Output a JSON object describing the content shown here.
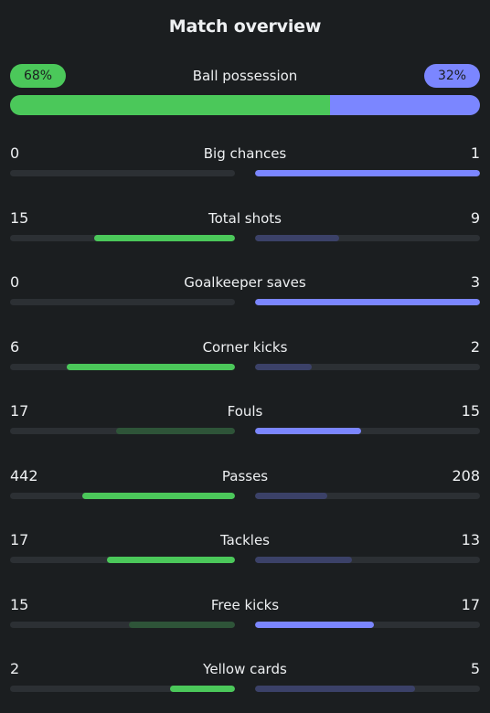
{
  "title": "Match overview",
  "possession": {
    "label": "Ball possession",
    "home_label": "68%",
    "away_label": "32%",
    "home_pct": 68,
    "away_pct": 32
  },
  "colors": {
    "home_strong": "#4bc85a",
    "home_weak": "#2e5438",
    "away_strong": "#7b86ff",
    "away_weak": "#3b4168",
    "track": "#2c3034"
  },
  "stats": [
    {
      "label": "Big chances",
      "home": "0",
      "away": "1",
      "home_fill": 0,
      "away_fill": 1.0,
      "home_strong": false,
      "away_strong": true
    },
    {
      "label": "Total shots",
      "home": "15",
      "away": "9",
      "home_fill": 0.625,
      "away_fill": 0.375,
      "home_strong": true,
      "away_strong": false
    },
    {
      "label": "Goalkeeper saves",
      "home": "0",
      "away": "3",
      "home_fill": 0,
      "away_fill": 1.0,
      "home_strong": false,
      "away_strong": true
    },
    {
      "label": "Corner kicks",
      "home": "6",
      "away": "2",
      "home_fill": 0.75,
      "away_fill": 0.25,
      "home_strong": true,
      "away_strong": false
    },
    {
      "label": "Fouls",
      "home": "17",
      "away": "15",
      "home_fill": 0.53,
      "away_fill": 0.47,
      "home_strong": false,
      "away_strong": true
    },
    {
      "label": "Passes",
      "home": "442",
      "away": "208",
      "home_fill": 0.68,
      "away_fill": 0.32,
      "home_strong": true,
      "away_strong": false
    },
    {
      "label": "Tackles",
      "home": "17",
      "away": "13",
      "home_fill": 0.57,
      "away_fill": 0.43,
      "home_strong": true,
      "away_strong": false
    },
    {
      "label": "Free kicks",
      "home": "15",
      "away": "17",
      "home_fill": 0.47,
      "away_fill": 0.53,
      "home_strong": false,
      "away_strong": true
    },
    {
      "label": "Yellow cards",
      "home": "2",
      "away": "5",
      "home_fill": 0.29,
      "away_fill": 0.71,
      "home_strong": true,
      "away_strong": false
    }
  ]
}
